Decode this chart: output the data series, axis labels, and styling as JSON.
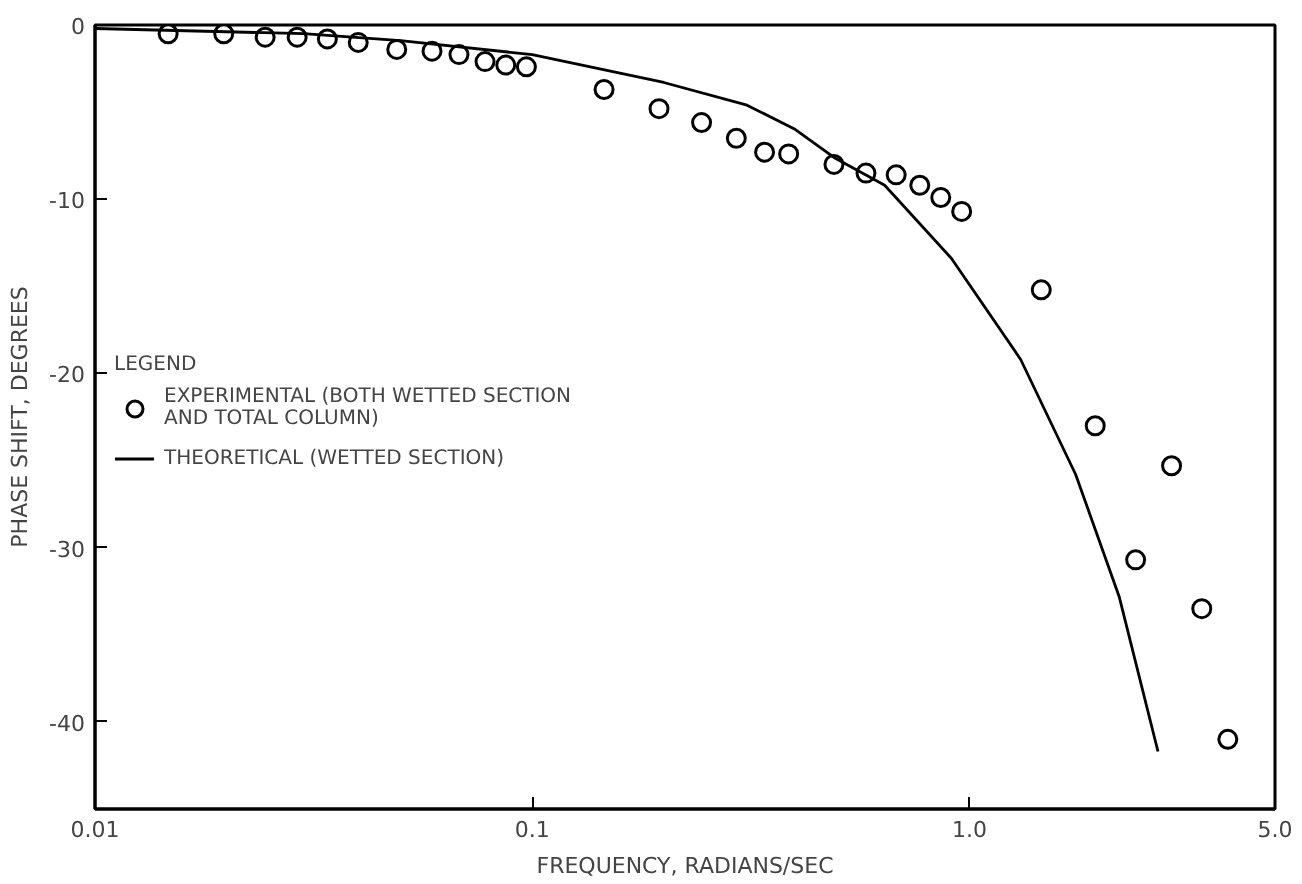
{
  "chart_data": {
    "type": "scatter",
    "xlabel": "FREQUENCY, RADIANS/SEC",
    "ylabel": "PHASE SHIFT, DEGREES",
    "legend_title": "LEGEND",
    "log": "x",
    "grid": false,
    "legend": "left",
    "xlim": [
      0.01,
      5.0
    ],
    "ylim": [
      -45,
      0
    ],
    "xticks": [
      0.01,
      0.1,
      {
        "value": 1,
        "label": "1.0"
      },
      {
        "value": 5,
        "label": "5.0"
      }
    ],
    "yticks": [
      0,
      -10,
      -20,
      -30,
      -40
    ],
    "series": [
      {
        "name": "EXPERIMENTAL (BOTH WETTED SECTION\nAND TOTAL COLUMN)",
        "marker": "circle",
        "color": "#000000",
        "x": [
          0.0147,
          0.0197,
          0.0245,
          0.029,
          0.034,
          0.04,
          0.049,
          0.059,
          0.068,
          0.078,
          0.087,
          0.097,
          0.146,
          0.195,
          0.244,
          0.293,
          0.34,
          0.386,
          0.49,
          0.58,
          0.68,
          0.77,
          0.86,
          0.96,
          1.46,
          1.94,
          2.4,
          2.9,
          3.4,
          3.9
        ],
        "values": [
          -0.5,
          -0.5,
          -0.7,
          -0.7,
          -0.8,
          -1.0,
          -1.4,
          -1.5,
          -1.7,
          -2.1,
          -2.3,
          -2.4,
          -3.7,
          -4.8,
          -5.6,
          -6.5,
          -7.3,
          -7.4,
          -8.0,
          -8.5,
          -8.6,
          -9.2,
          -9.9,
          -10.7,
          -15.2,
          -23.0,
          -30.7,
          -25.3,
          -33.5,
          -41.0
        ]
      },
      {
        "name": "THEORETICAL (WETTED SECTION)",
        "type": "line",
        "line_style": "solid",
        "color": "#000000",
        "x": [
          0.01,
          0.03,
          0.05,
          0.1,
          0.2,
          0.31,
          0.4,
          0.49,
          0.64,
          0.91,
          1.31,
          1.75,
          2.2,
          2.7
        ],
        "values": [
          -0.2,
          -0.5,
          -0.9,
          -1.7,
          -3.3,
          -4.6,
          -6.0,
          -7.6,
          -9.2,
          -13.4,
          -19.2,
          -25.8,
          -32.8,
          -41.7
        ]
      }
    ]
  }
}
